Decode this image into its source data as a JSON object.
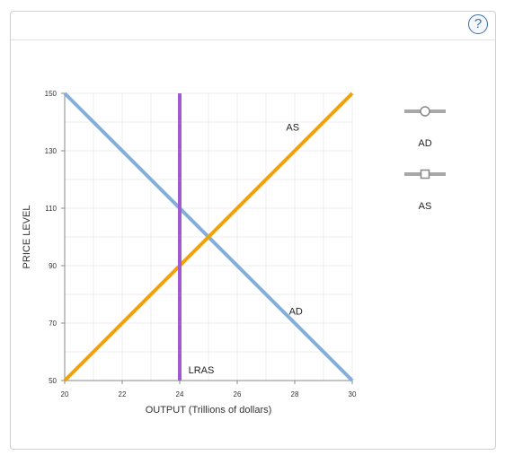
{
  "help": {
    "label": "?"
  },
  "chart_data": {
    "type": "line",
    "xlabel": "OUTPUT (Trillions of dollars)",
    "ylabel": "PRICE LEVEL",
    "xlim": [
      20,
      30
    ],
    "ylim": [
      50,
      150
    ],
    "xticks": [
      20,
      22,
      24,
      26,
      28,
      30
    ],
    "yticks": [
      50,
      70,
      90,
      110,
      130,
      150
    ],
    "grid": true,
    "legend_position": "right",
    "series": [
      {
        "name": "AD",
        "color": "#86aed6",
        "marker": "circle",
        "points": [
          [
            20,
            150
          ],
          [
            30,
            50
          ]
        ],
        "label_at": [
          27.8,
          73
        ]
      },
      {
        "name": "AS",
        "color": "#f7a100",
        "marker": "square",
        "points": [
          [
            20,
            50
          ],
          [
            30,
            150
          ]
        ],
        "label_at": [
          27.7,
          137
        ]
      },
      {
        "name": "LRAS",
        "color": "#a05ad2",
        "marker": "none",
        "points": [
          [
            24,
            50
          ],
          [
            24,
            150
          ]
        ],
        "label_at": [
          24.3,
          52.5
        ]
      }
    ],
    "legend": [
      {
        "name": "AD",
        "marker": "circle"
      },
      {
        "name": "AS",
        "marker": "square"
      }
    ]
  }
}
